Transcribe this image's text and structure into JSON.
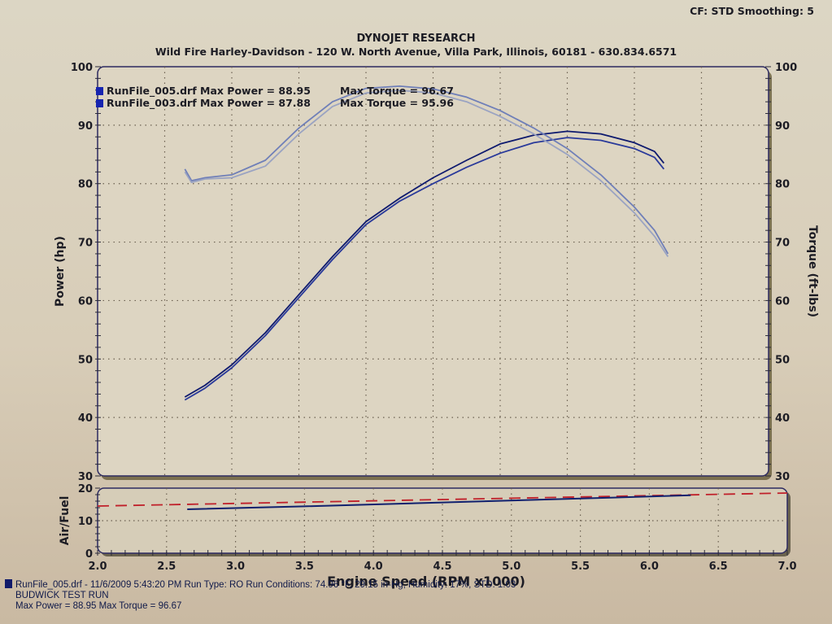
{
  "header": {
    "title": "DYNOJET RESEARCH",
    "subtitle": "Wild Fire Harley-Davidson - 120 W. North Avenue, Villa Park, Illinois, 60181 - 630.834.6571",
    "settings": "CF: STD  Smoothing: 5"
  },
  "legend": {
    "items": [
      {
        "label": "RunFile_005.drf Max Power = 88.95",
        "torque": "Max Torque = 96.67"
      },
      {
        "label": "RunFile_003.drf Max Power = 87.88",
        "torque": "Max Torque = 95.96"
      }
    ]
  },
  "footer": {
    "line1": "RunFile_005.drf - 11/6/2009 5:43:20 PM  Run Type: RO  Run Conditions: 74.96 °F, 29.15 in-Hg,  Humidity: 17%, STD: 1.03",
    "line2": "BUDWICK TEST RUN",
    "line3": "Max Power = 88.95  Max Torque = 96.67"
  },
  "colors": {
    "power_005": "#0e1a6e",
    "power_003": "#2a3a9a",
    "torque_005": "#6f7fb8",
    "torque_003": "#9aa3c2",
    "af_target": "#c0202a",
    "af_actual": "#10206e",
    "frame": "#2c2a60"
  },
  "chart_data": [
    {
      "type": "line",
      "title": "DYNOJET RESEARCH",
      "xlabel": "Engine Speed (RPM x1000)",
      "ylabel": "Power (hp)",
      "y2label": "Torque (ft-lbs)",
      "xlim": [
        2.0,
        7.0
      ],
      "ylim": [
        30,
        100
      ],
      "y2lim": [
        30,
        100
      ],
      "xticks": [
        "2.0",
        "2.5",
        "3.0",
        "3.5",
        "4.0",
        "4.5",
        "5.0",
        "5.5",
        "6.0",
        "6.5",
        "7.0"
      ],
      "yticks": [
        "30",
        "40",
        "50",
        "60",
        "70",
        "80",
        "90",
        "100"
      ],
      "grid": true,
      "legend_position": "top-left",
      "series": [
        {
          "name": "RunFile_005.drf Power (hp)",
          "axis": "left",
          "x": [
            2.65,
            2.8,
            3.0,
            3.25,
            3.5,
            3.75,
            4.0,
            4.25,
            4.5,
            4.75,
            5.0,
            5.25,
            5.5,
            5.75,
            6.0,
            6.15,
            6.22
          ],
          "y": [
            43.5,
            45.5,
            49,
            54.5,
            61,
            67.5,
            73.5,
            77.5,
            81,
            84,
            86.8,
            88.3,
            88.95,
            88.5,
            87,
            85.5,
            83.5
          ]
        },
        {
          "name": "RunFile_003.drf Power (hp)",
          "axis": "left",
          "x": [
            2.65,
            2.8,
            3.0,
            3.25,
            3.5,
            3.75,
            4.0,
            4.25,
            4.5,
            4.75,
            5.0,
            5.25,
            5.5,
            5.75,
            6.0,
            6.15,
            6.22
          ],
          "y": [
            43,
            45,
            48.5,
            54,
            60.5,
            67,
            73,
            77,
            80,
            82.8,
            85.2,
            87,
            87.88,
            87.4,
            86,
            84.5,
            82.5
          ]
        },
        {
          "name": "RunFile_005.drf Torque (ft-lbs)",
          "axis": "right",
          "x": [
            2.65,
            2.7,
            2.8,
            3.0,
            3.25,
            3.5,
            3.75,
            4.0,
            4.25,
            4.5,
            4.75,
            5.0,
            5.25,
            5.5,
            5.75,
            6.0,
            6.15,
            6.25
          ],
          "y": [
            82.5,
            80.5,
            81,
            81.5,
            84,
            89.5,
            94,
            96.3,
            96.67,
            96.2,
            94.8,
            92.5,
            89.5,
            86,
            81.5,
            76,
            72,
            68
          ]
        },
        {
          "name": "RunFile_003.drf Torque (ft-lbs)",
          "axis": "right",
          "x": [
            2.65,
            2.7,
            2.8,
            3.0,
            3.25,
            3.5,
            3.75,
            4.0,
            4.25,
            4.5,
            4.75,
            5.0,
            5.25,
            5.5,
            5.75,
            6.0,
            6.15,
            6.25
          ],
          "y": [
            82,
            80.2,
            80.8,
            81,
            83,
            88.5,
            93.2,
            95.5,
            95.96,
            95.5,
            94,
            91.5,
            88.5,
            85,
            80.5,
            75,
            71,
            67.5
          ]
        }
      ]
    },
    {
      "type": "line",
      "ylabel": "Air/Fuel",
      "xlabel": "Engine Speed (RPM x1000)",
      "xlim": [
        2.0,
        7.0
      ],
      "ylim": [
        0,
        20
      ],
      "yticks": [
        "0",
        "10",
        "20"
      ],
      "series": [
        {
          "name": "Target (dashed)",
          "x": [
            2.0,
            7.0
          ],
          "y": [
            14.5,
            18.5
          ]
        },
        {
          "name": "RunFile_005.drf Air/Fuel",
          "x": [
            2.65,
            3.5,
            4.5,
            5.5,
            6.3
          ],
          "y": [
            13.5,
            14.4,
            15.6,
            16.8,
            17.8
          ]
        }
      ]
    }
  ]
}
